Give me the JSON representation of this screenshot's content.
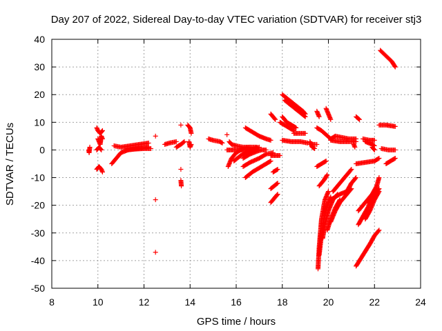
{
  "chart_data": {
    "type": "scatter",
    "title": "Day 207 of 2022, Sidereal Day-to-day VTEC variation (SDTVAR) for receiver stj3",
    "xlabel": "GPS time / hours",
    "ylabel": "SDTVAR / TECUs",
    "xlim": [
      8,
      24
    ],
    "ylim": [
      -50,
      40
    ],
    "xticks": [
      "8",
      "10",
      "12",
      "14",
      "16",
      "18",
      "20",
      "22",
      "24"
    ],
    "yticks": [
      "40",
      "30",
      "20",
      "10",
      "0",
      "-10",
      "-20",
      "-30",
      "-40",
      "-50"
    ],
    "grid": true,
    "marker": "+",
    "color": "#ff0000",
    "segments": [
      [
        [
          9.6,
          0
        ],
        [
          9.62,
          -1
        ],
        [
          9.65,
          1
        ]
      ],
      [
        [
          9.95,
          8
        ],
        [
          10.0,
          7
        ],
        [
          10.1,
          6
        ],
        [
          10.2,
          7
        ]
      ],
      [
        [
          10.0,
          4
        ],
        [
          10.05,
          3
        ],
        [
          10.1,
          2
        ],
        [
          10.15,
          5
        ],
        [
          10.2,
          4
        ]
      ],
      [
        [
          9.95,
          0
        ],
        [
          10.05,
          1
        ],
        [
          10.15,
          0
        ]
      ],
      [
        [
          9.95,
          -7
        ],
        [
          10.05,
          -6
        ],
        [
          10.15,
          -7
        ],
        [
          10.2,
          -8
        ]
      ],
      [
        [
          10.6,
          -5
        ],
        [
          10.8,
          -3
        ],
        [
          11.0,
          -1
        ],
        [
          11.3,
          0
        ],
        [
          11.7,
          0.5
        ],
        [
          12.0,
          0.8
        ],
        [
          12.2,
          1
        ]
      ],
      [
        [
          10.7,
          1.5
        ],
        [
          11.0,
          1
        ],
        [
          11.4,
          1.5
        ],
        [
          11.8,
          2
        ],
        [
          12.2,
          2.5
        ]
      ],
      [
        [
          11.2,
          0
        ],
        [
          11.6,
          0.3
        ],
        [
          12.0,
          0.5
        ],
        [
          12.3,
          0.5
        ]
      ],
      [
        [
          12.5,
          5
        ]
      ],
      [
        [
          12.5,
          -18
        ]
      ],
      [
        [
          12.5,
          -37
        ]
      ],
      [
        [
          12.9,
          2
        ],
        [
          13.1,
          2.5
        ],
        [
          13.4,
          3
        ]
      ],
      [
        [
          13.4,
          1
        ],
        [
          13.6,
          2
        ],
        [
          13.75,
          3
        ]
      ],
      [
        [
          13.6,
          9
        ]
      ],
      [
        [
          13.6,
          -7
        ]
      ],
      [
        [
          13.6,
          -11
        ],
        [
          13.62,
          -13
        ]
      ],
      [
        [
          13.9,
          9
        ],
        [
          14.0,
          8
        ],
        [
          14.05,
          6
        ]
      ],
      [
        [
          13.95,
          3
        ],
        [
          14.0,
          1
        ],
        [
          14.05,
          2
        ]
      ],
      [
        [
          14.8,
          4
        ],
        [
          15.0,
          3.5
        ],
        [
          15.3,
          3
        ],
        [
          15.4,
          2.5
        ]
      ],
      [
        [
          15.6,
          5.5
        ]
      ],
      [
        [
          15.7,
          3
        ],
        [
          15.8,
          2
        ],
        [
          16.0,
          1.5
        ],
        [
          16.3,
          1
        ],
        [
          16.6,
          1
        ],
        [
          16.9,
          1
        ]
      ],
      [
        [
          15.6,
          0
        ],
        [
          15.8,
          0
        ],
        [
          16.2,
          0
        ],
        [
          16.6,
          0
        ],
        [
          16.9,
          0
        ]
      ],
      [
        [
          15.65,
          -6
        ],
        [
          15.8,
          -3
        ],
        [
          16.0,
          -1
        ],
        [
          16.3,
          0.5
        ],
        [
          16.6,
          1
        ]
      ],
      [
        [
          15.9,
          -4
        ],
        [
          16.2,
          -2
        ],
        [
          16.5,
          -0.5
        ],
        [
          16.8,
          0.5
        ],
        [
          17.0,
          1
        ]
      ],
      [
        [
          16.3,
          -3
        ],
        [
          16.6,
          -1.5
        ],
        [
          16.9,
          -0.5
        ],
        [
          17.1,
          0
        ],
        [
          17.3,
          0
        ]
      ],
      [
        [
          16.4,
          8
        ],
        [
          16.7,
          6.5
        ],
        [
          17.0,
          5
        ],
        [
          17.3,
          4
        ],
        [
          17.5,
          3.5
        ]
      ],
      [
        [
          16.3,
          -6
        ],
        [
          16.6,
          -4.5
        ],
        [
          17.0,
          -3
        ],
        [
          17.3,
          -1.5
        ],
        [
          17.6,
          -1
        ]
      ],
      [
        [
          16.4,
          -10
        ],
        [
          16.7,
          -8
        ],
        [
          17.0,
          -6.5
        ],
        [
          17.3,
          -5
        ],
        [
          17.5,
          -4
        ]
      ],
      [
        [
          17.5,
          -2
        ],
        [
          17.7,
          -2
        ],
        [
          17.9,
          -2
        ]
      ],
      [
        [
          17.5,
          13
        ],
        [
          17.6,
          12
        ],
        [
          17.7,
          11
        ]
      ],
      [
        [
          17.6,
          -8
        ],
        [
          17.7,
          -7.5
        ],
        [
          17.8,
          -7
        ]
      ],
      [
        [
          17.5,
          -14
        ],
        [
          17.65,
          -13
        ],
        [
          17.8,
          -12
        ]
      ],
      [
        [
          17.5,
          -19
        ],
        [
          17.7,
          -17
        ],
        [
          17.8,
          -16
        ]
      ],
      [
        [
          18.0,
          20
        ],
        [
          18.3,
          18
        ],
        [
          18.6,
          16
        ],
        [
          18.9,
          14
        ],
        [
          19.0,
          13
        ]
      ],
      [
        [
          18.1,
          18
        ],
        [
          18.4,
          16
        ],
        [
          18.7,
          14
        ],
        [
          19.0,
          12
        ]
      ],
      [
        [
          18.0,
          12
        ],
        [
          18.2,
          10
        ],
        [
          18.4,
          9
        ],
        [
          18.6,
          8
        ]
      ],
      [
        [
          17.9,
          10
        ],
        [
          18.1,
          9
        ],
        [
          18.3,
          8
        ],
        [
          18.5,
          7
        ]
      ],
      [
        [
          18.5,
          6
        ],
        [
          18.7,
          6
        ],
        [
          19.0,
          6
        ]
      ],
      [
        [
          18.0,
          3.5
        ],
        [
          18.4,
          3
        ],
        [
          18.8,
          3
        ],
        [
          19.1,
          2.5
        ]
      ],
      [
        [
          19.2,
          2
        ],
        [
          19.4,
          2
        ],
        [
          19.5,
          2
        ]
      ],
      [
        [
          19.2,
          3
        ],
        [
          19.3,
          1
        ],
        [
          19.4,
          0.5
        ]
      ],
      [
        [
          19.5,
          14
        ],
        [
          19.6,
          12
        ]
      ],
      [
        [
          19.9,
          15
        ],
        [
          20.0,
          13
        ],
        [
          20.1,
          11
        ]
      ],
      [
        [
          19.5,
          8
        ],
        [
          19.7,
          7
        ],
        [
          19.9,
          5.5
        ],
        [
          20.1,
          4
        ]
      ],
      [
        [
          20.1,
          4
        ],
        [
          20.3,
          5
        ],
        [
          20.6,
          4.5
        ],
        [
          20.9,
          4
        ],
        [
          21.2,
          4
        ]
      ],
      [
        [
          20.1,
          3.5
        ],
        [
          20.5,
          3
        ],
        [
          20.9,
          3
        ],
        [
          21.2,
          3
        ]
      ],
      [
        [
          21.2,
          12
        ],
        [
          21.35,
          11
        ]
      ],
      [
        [
          21.1,
          2
        ],
        [
          21.15,
          1
        ]
      ],
      [
        [
          21.5,
          4
        ],
        [
          21.8,
          3.5
        ],
        [
          22.0,
          3.5
        ]
      ],
      [
        [
          21.6,
          3
        ],
        [
          21.9,
          2
        ],
        [
          22.0,
          1.5
        ]
      ],
      [
        [
          21.9,
          1
        ],
        [
          22.0,
          0
        ]
      ],
      [
        [
          22.2,
          9
        ],
        [
          22.5,
          9
        ],
        [
          22.9,
          8.5
        ]
      ],
      [
        [
          22.3,
          0.5
        ],
        [
          22.6,
          0
        ],
        [
          22.9,
          0
        ]
      ],
      [
        [
          22.25,
          36
        ],
        [
          22.5,
          34
        ],
        [
          22.75,
          32
        ],
        [
          22.9,
          30
        ]
      ],
      [
        [
          22.9,
          -3
        ],
        [
          22.7,
          -4
        ],
        [
          22.5,
          -5
        ]
      ],
      [
        [
          19.5,
          -6
        ],
        [
          19.7,
          -5
        ],
        [
          19.9,
          -4
        ]
      ],
      [
        [
          19.6,
          -13
        ],
        [
          19.8,
          -11
        ],
        [
          19.95,
          -9
        ]
      ],
      [
        [
          19.55,
          -43
        ],
        [
          19.6,
          -35
        ],
        [
          19.7,
          -25
        ],
        [
          19.85,
          -18
        ],
        [
          20.0,
          -15
        ]
      ],
      [
        [
          19.6,
          -38
        ],
        [
          19.7,
          -31
        ],
        [
          19.8,
          -25
        ],
        [
          19.95,
          -20
        ],
        [
          20.1,
          -17
        ]
      ],
      [
        [
          19.75,
          -32
        ],
        [
          19.85,
          -27
        ],
        [
          20.0,
          -22
        ],
        [
          20.2,
          -18
        ],
        [
          20.4,
          -16
        ]
      ],
      [
        [
          19.95,
          -29
        ],
        [
          20.1,
          -25
        ],
        [
          20.3,
          -21
        ],
        [
          20.5,
          -18
        ]
      ],
      [
        [
          20.1,
          -26
        ],
        [
          20.3,
          -22
        ],
        [
          20.5,
          -19
        ],
        [
          20.8,
          -16
        ],
        [
          21.0,
          -14
        ]
      ],
      [
        [
          20.1,
          -18
        ],
        [
          20.5,
          -16
        ],
        [
          20.8,
          -15
        ],
        [
          21.0,
          -12
        ],
        [
          21.2,
          -10
        ]
      ],
      [
        [
          20.2,
          -15
        ],
        [
          20.5,
          -12
        ],
        [
          20.8,
          -9
        ],
        [
          21.0,
          -7
        ]
      ],
      [
        [
          21.2,
          -5
        ],
        [
          21.6,
          -4.5
        ],
        [
          22.0,
          -4
        ],
        [
          22.2,
          -3
        ]
      ],
      [
        [
          21.3,
          -22
        ],
        [
          21.6,
          -19
        ],
        [
          21.9,
          -16
        ],
        [
          22.1,
          -14
        ]
      ],
      [
        [
          21.2,
          -42
        ],
        [
          21.5,
          -38
        ],
        [
          21.8,
          -34
        ],
        [
          22.0,
          -31
        ],
        [
          22.2,
          -29
        ]
      ],
      [
        [
          21.3,
          -27
        ],
        [
          21.5,
          -24
        ],
        [
          21.7,
          -21
        ],
        [
          21.95,
          -17
        ],
        [
          22.2,
          -14
        ]
      ],
      [
        [
          21.6,
          -25
        ],
        [
          21.8,
          -22
        ],
        [
          22.0,
          -18
        ],
        [
          22.2,
          -15
        ]
      ],
      [
        [
          21.7,
          -19
        ],
        [
          21.9,
          -16
        ],
        [
          22.1,
          -13
        ],
        [
          22.2,
          -10
        ]
      ]
    ]
  }
}
